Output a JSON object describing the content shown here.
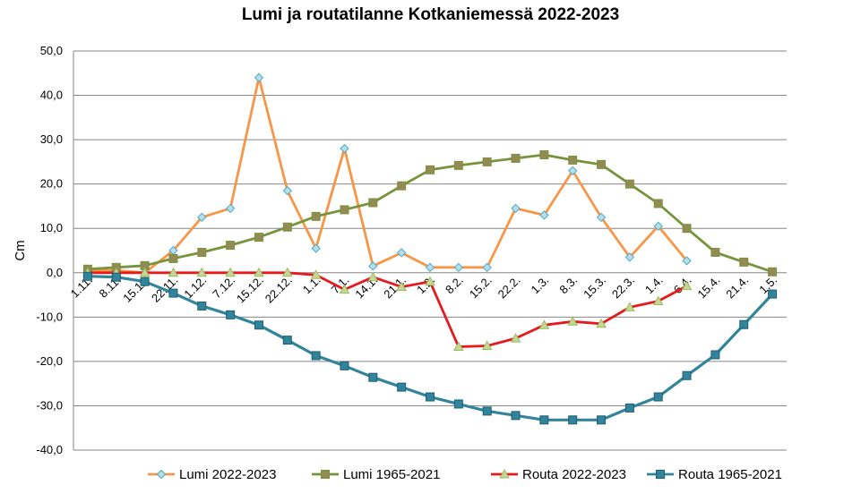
{
  "chart_data": {
    "type": "line",
    "title": "Lumi ja routatilanne Kotkaniemessä 2022-2023",
    "xlabel": "",
    "ylabel": "Cm",
    "ylim": [
      -40,
      50
    ],
    "ytick_labels": [
      "50,0",
      "40,0",
      "30,0",
      "20,0",
      "10,0",
      "0,0",
      "-10,0",
      "-20,0",
      "-30,0",
      "-40,0"
    ],
    "categories": [
      "1.11.",
      "8.11.",
      "15.11.",
      "22.11.",
      "1.12.",
      "7.12.",
      "15.12.",
      "22.12.",
      "1.1.",
      "7.1.",
      "14.1.",
      "21.1.",
      "1.2.",
      "8.2.",
      "15.2.",
      "22.2.",
      "1.3.",
      "8.3.",
      "15.3.",
      "22.3.",
      "1.4.",
      "6.4.",
      "15.4.",
      "21.4.",
      "1.5."
    ],
    "grid": true,
    "legend_position": "bottom",
    "series": [
      {
        "name": "Lumi 2022-2023",
        "color": "#F79646",
        "marker": "diamond",
        "marker_color": "#B7DEE8",
        "values": [
          0.5,
          0.5,
          0.0,
          5.0,
          12.5,
          14.5,
          44.0,
          18.5,
          5.5,
          28.0,
          1.5,
          4.5,
          1.2,
          1.2,
          1.2,
          14.5,
          13.0,
          23.0,
          12.5,
          3.5,
          10.5,
          2.7,
          null,
          null,
          null
        ]
      },
      {
        "name": "Lumi 1965-2021",
        "color": "#77933C",
        "marker": "square",
        "marker_color": "#948A54",
        "values": [
          0.8,
          1.2,
          1.6,
          3.2,
          4.6,
          6.2,
          8.0,
          10.3,
          12.7,
          14.2,
          15.8,
          19.6,
          23.2,
          24.2,
          25.0,
          25.8,
          26.6,
          25.4,
          24.4,
          20.0,
          15.6,
          10.0,
          4.6,
          2.4,
          0.2
        ]
      },
      {
        "name": "Routa 2022-2023",
        "color": "#E41A1C",
        "marker": "triangle",
        "marker_color": "#C4D79B",
        "values": [
          0.0,
          0.0,
          0.0,
          0.0,
          0.0,
          0.0,
          0.0,
          0.0,
          -0.5,
          -3.8,
          -1.0,
          -3.2,
          -2.0,
          -16.7,
          -16.5,
          -14.8,
          -11.8,
          -11.0,
          -11.5,
          -7.8,
          -6.4,
          -3.0,
          null,
          null,
          null
        ]
      },
      {
        "name": "Routa 1965-2021",
        "color": "#31849B",
        "marker": "square",
        "marker_color": "#31849B",
        "values": [
          -0.8,
          -1.0,
          -2.0,
          -4.6,
          -7.5,
          -9.5,
          -11.8,
          -15.2,
          -18.7,
          -21.0,
          -23.6,
          -25.8,
          -28.0,
          -29.6,
          -31.2,
          -32.2,
          -33.2,
          -33.2,
          -33.2,
          -30.5,
          -28.0,
          -23.2,
          -18.5,
          -11.7,
          -4.8
        ]
      }
    ]
  }
}
